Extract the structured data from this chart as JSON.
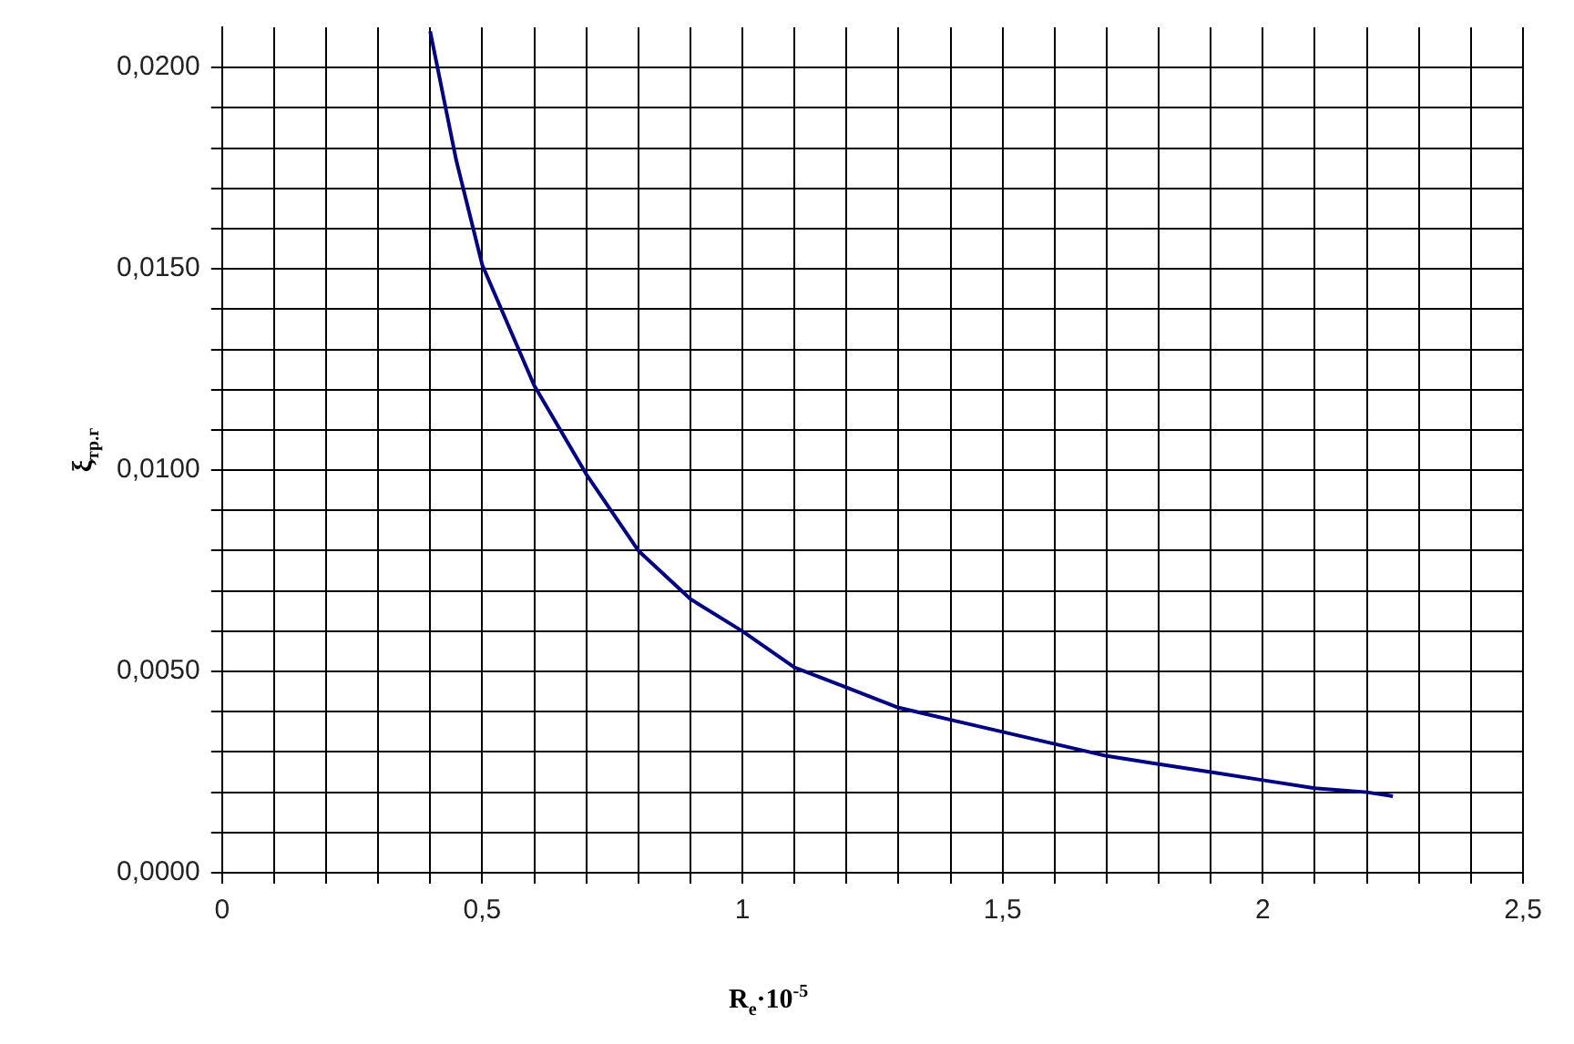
{
  "chart_data": {
    "type": "line",
    "xlabel": "R$_{e}$·10$^{-5}$",
    "ylabel": "ξ$_{тр.г}$",
    "x": [
      0.4,
      0.45,
      0.5,
      0.6,
      0.7,
      0.8,
      0.9,
      1.0,
      1.1,
      1.2,
      1.3,
      1.4,
      1.5,
      1.6,
      1.7,
      1.8,
      1.9,
      2.0,
      2.1,
      2.2,
      2.25
    ],
    "series": [
      {
        "color": "#000080",
        "values": [
          0.0209,
          0.0177,
          0.0151,
          0.0121,
          0.0099,
          0.008,
          0.0068,
          0.006,
          0.0051,
          0.0046,
          0.0041,
          0.0038,
          0.0035,
          0.0032,
          0.0029,
          0.0027,
          0.0025,
          0.0023,
          0.0021,
          0.002,
          0.0019
        ]
      }
    ],
    "xlim": [
      0,
      2.5
    ],
    "xticks": [
      0,
      {
        "value": 0.1,
        "label": null
      },
      {
        "value": 0.2,
        "label": null
      },
      {
        "value": 0.3,
        "label": null
      },
      {
        "value": 0.4,
        "label": null
      },
      {
        "value": 0.5,
        "label": "0,5"
      },
      {
        "value": 0.6,
        "label": null
      },
      {
        "value": 0.7,
        "label": null
      },
      {
        "value": 0.8,
        "label": null
      },
      {
        "value": 0.9,
        "label": null
      },
      1,
      {
        "value": 1.1,
        "label": null
      },
      {
        "value": 1.2,
        "label": null
      },
      {
        "value": 1.3,
        "label": null
      },
      {
        "value": 1.4,
        "label": null
      },
      {
        "value": 1.5,
        "label": "1,5"
      },
      {
        "value": 1.6,
        "label": null
      },
      {
        "value": 1.7,
        "label": null
      },
      {
        "value": 1.8,
        "label": null
      },
      {
        "value": 1.9,
        "label": null
      },
      2,
      {
        "value": 2.1,
        "label": null
      },
      {
        "value": 2.2,
        "label": null
      },
      {
        "value": 2.3,
        "label": null
      },
      {
        "value": 2.4,
        "label": null
      },
      {
        "value": 2.5,
        "label": "2,5"
      }
    ],
    "ylim": [
      0,
      0.021
    ],
    "yticks": [
      {
        "value": 0,
        "label": "0,0000"
      },
      {
        "value": 0.001,
        "label": null
      },
      {
        "value": 0.002,
        "label": null
      },
      {
        "value": 0.003,
        "label": null
      },
      {
        "value": 0.004,
        "label": null
      },
      {
        "value": 0.005,
        "label": "0,0050"
      },
      {
        "value": 0.006,
        "label": null
      },
      {
        "value": 0.007,
        "label": null
      },
      {
        "value": 0.008,
        "label": null
      },
      {
        "value": 0.009,
        "label": null
      },
      {
        "value": 0.01,
        "label": "0,0100"
      },
      {
        "value": 0.011,
        "label": null
      },
      {
        "value": 0.012,
        "label": null
      },
      {
        "value": 0.013,
        "label": null
      },
      {
        "value": 0.014,
        "label": null
      },
      {
        "value": 0.015,
        "label": "0,0150"
      },
      {
        "value": 0.016,
        "label": null
      },
      {
        "value": 0.017,
        "label": null
      },
      {
        "value": 0.018,
        "label": null
      },
      {
        "value": 0.019,
        "label": null
      },
      {
        "value": 0.02,
        "label": "0,0200"
      }
    ],
    "grid": true,
    "legend": false,
    "marker": "none",
    "line_style": "solid"
  }
}
